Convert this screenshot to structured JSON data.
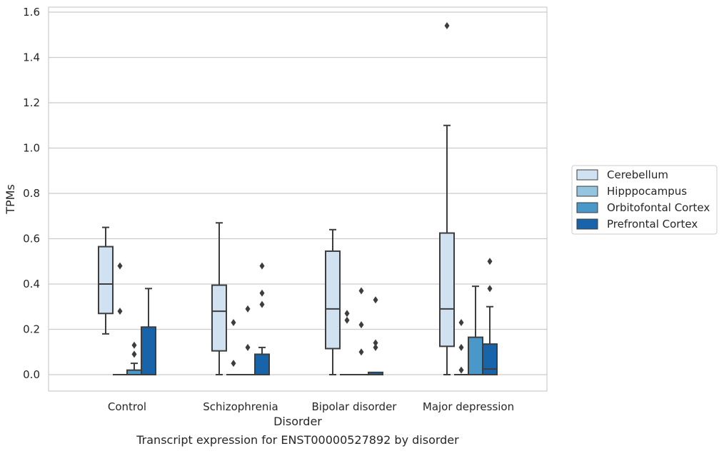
{
  "chart_data": {
    "type": "box",
    "caption": "Transcript expression for ENST00000527892 by disorder",
    "xlabel": "Disorder",
    "ylabel": "TPMs",
    "ylim": [
      -0.075,
      1.62
    ],
    "yticks": [
      0.0,
      0.2,
      0.4,
      0.6,
      0.8,
      1.0,
      1.2,
      1.4,
      1.6
    ],
    "ytick_labels": [
      "0.0",
      "0.2",
      "0.4",
      "0.6",
      "0.8",
      "1.0",
      "1.2",
      "1.4",
      "1.6"
    ],
    "grid": "horizontal",
    "legend_position": "right",
    "categories": [
      "Control",
      "Schizophrenia",
      "Bipolar disorder",
      "Major depression"
    ],
    "series": [
      {
        "name": "Cerebellum",
        "color": "#d0e1f2",
        "boxes": [
          {
            "whisker_low": 0.18,
            "q1": 0.27,
            "median": 0.4,
            "q3": 0.565,
            "whisker_high": 0.65,
            "outliers": []
          },
          {
            "whisker_low": 0.0,
            "q1": 0.105,
            "median": 0.28,
            "q3": 0.395,
            "whisker_high": 0.67,
            "outliers": []
          },
          {
            "whisker_low": 0.0,
            "q1": 0.115,
            "median": 0.29,
            "q3": 0.545,
            "whisker_high": 0.64,
            "outliers": []
          },
          {
            "whisker_low": 0.0,
            "q1": 0.125,
            "median": 0.29,
            "q3": 0.625,
            "whisker_high": 1.1,
            "outliers": [
              1.54
            ]
          }
        ]
      },
      {
        "name": "Hipppocampus",
        "color": "#94c4df",
        "boxes": [
          {
            "whisker_low": 0.0,
            "q1": 0.0,
            "median": 0.0,
            "q3": 0.0,
            "whisker_high": 0.0,
            "outliers": [
              0.48,
              0.28
            ]
          },
          {
            "whisker_low": 0.0,
            "q1": 0.0,
            "median": 0.0,
            "q3": 0.0,
            "whisker_high": 0.0,
            "outliers": [
              0.23,
              0.05
            ]
          },
          {
            "whisker_low": 0.0,
            "q1": 0.0,
            "median": 0.0,
            "q3": 0.0,
            "whisker_high": 0.0,
            "outliers": [
              0.27,
              0.24
            ]
          },
          {
            "whisker_low": 0.0,
            "q1": 0.0,
            "median": 0.0,
            "q3": 0.0,
            "whisker_high": 0.0,
            "outliers": [
              0.23,
              0.12,
              0.02
            ]
          }
        ]
      },
      {
        "name": "Orbitofontal Cortex",
        "color": "#4a98c9",
        "boxes": [
          {
            "whisker_low": 0.0,
            "q1": 0.0,
            "median": 0.0,
            "q3": 0.02,
            "whisker_high": 0.05,
            "outliers": [
              0.13,
              0.09
            ]
          },
          {
            "whisker_low": 0.0,
            "q1": 0.0,
            "median": 0.0,
            "q3": 0.0,
            "whisker_high": 0.0,
            "outliers": [
              0.29,
              0.12
            ]
          },
          {
            "whisker_low": 0.0,
            "q1": 0.0,
            "median": 0.0,
            "q3": 0.0,
            "whisker_high": 0.0,
            "outliers": [
              0.37,
              0.22,
              0.1
            ]
          },
          {
            "whisker_low": 0.0,
            "q1": 0.0,
            "median": 0.0,
            "q3": 0.165,
            "whisker_high": 0.39,
            "outliers": []
          }
        ]
      },
      {
        "name": "Prefrontal Cortex",
        "color": "#1764ab",
        "boxes": [
          {
            "whisker_low": 0.0,
            "q1": 0.0,
            "median": 0.0,
            "q3": 0.21,
            "whisker_high": 0.38,
            "outliers": []
          },
          {
            "whisker_low": 0.0,
            "q1": 0.0,
            "median": 0.0,
            "q3": 0.09,
            "whisker_high": 0.12,
            "outliers": [
              0.48,
              0.36,
              0.31
            ]
          },
          {
            "whisker_low": 0.0,
            "q1": 0.0,
            "median": 0.0,
            "q3": 0.01,
            "whisker_high": 0.01,
            "outliers": [
              0.33,
              0.14,
              0.12
            ]
          },
          {
            "whisker_low": 0.0,
            "q1": 0.0,
            "median": 0.025,
            "q3": 0.135,
            "whisker_high": 0.3,
            "outliers": [
              0.5,
              0.38
            ]
          }
        ]
      }
    ],
    "style": {
      "line_color": "#3d3d3d",
      "grid_color": "#cccccc",
      "frame_color": "#cccccc"
    }
  }
}
